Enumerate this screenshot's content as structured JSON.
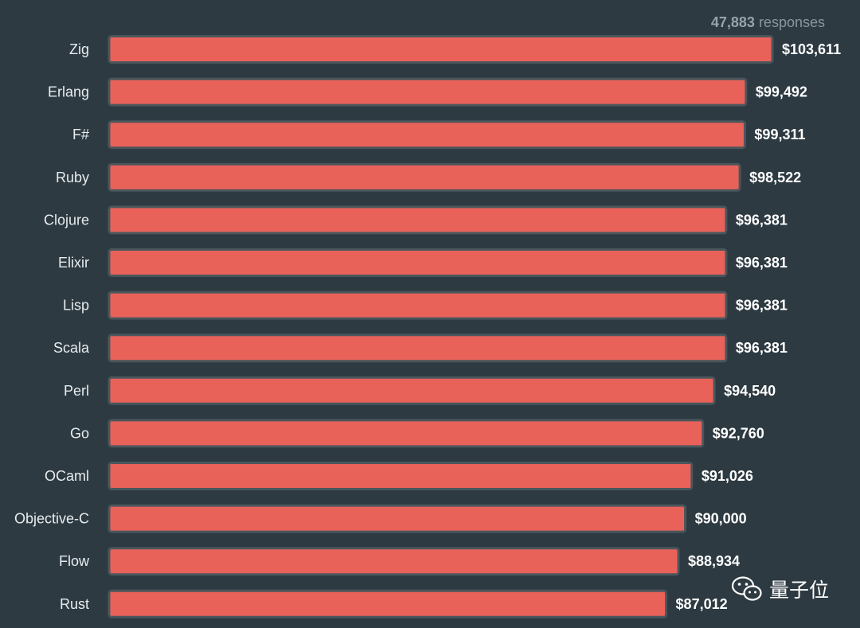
{
  "header": {
    "responses_count": "47,883",
    "responses_label": "responses"
  },
  "watermark": {
    "text": "量子位",
    "icon": "wechat-icon"
  },
  "colors": {
    "background": "#2d3a41",
    "bar_fill": "#e9625a",
    "bar_border": "#4a565c"
  },
  "chart_data": {
    "type": "bar",
    "orientation": "horizontal",
    "title": "",
    "xlabel": "",
    "ylabel": "",
    "categories": [
      "Zig",
      "Erlang",
      "F#",
      "Ruby",
      "Clojure",
      "Elixir",
      "Lisp",
      "Scala",
      "Perl",
      "Go",
      "OCaml",
      "Objective-C",
      "Flow",
      "Rust"
    ],
    "values": [
      103611,
      99492,
      99311,
      98522,
      96381,
      96381,
      96381,
      96381,
      94540,
      92760,
      91026,
      90000,
      88934,
      87012
    ],
    "value_labels": [
      "$103,611",
      "$99,492",
      "$99,311",
      "$98,522",
      "$96,381",
      "$96,381",
      "$96,381",
      "$96,381",
      "$94,540",
      "$92,760",
      "$91,026",
      "$90,000",
      "$88,934",
      "$87,012"
    ],
    "xlim": [
      0,
      103611
    ],
    "grid": false,
    "legend": "none"
  }
}
